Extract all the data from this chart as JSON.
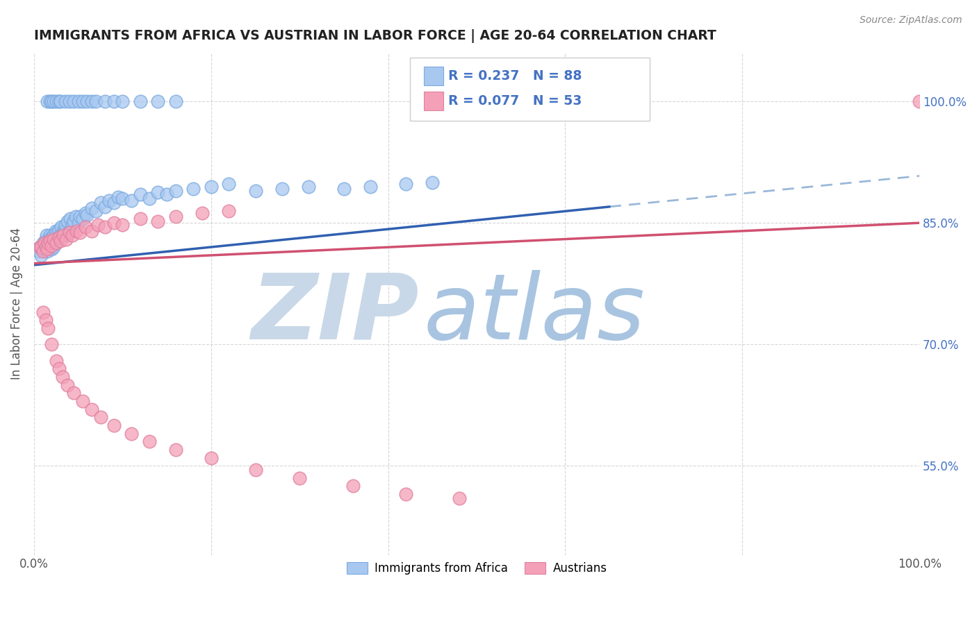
{
  "title": "IMMIGRANTS FROM AFRICA VS AUSTRIAN IN LABOR FORCE | AGE 20-64 CORRELATION CHART",
  "source": "Source: ZipAtlas.com",
  "ylabel": "In Labor Force | Age 20-64",
  "xlim": [
    0.0,
    1.0
  ],
  "ylim": [
    0.44,
    1.06
  ],
  "x_ticks": [
    0.0,
    0.2,
    0.4,
    0.6,
    0.8,
    1.0
  ],
  "x_tick_labels": [
    "0.0%",
    "",
    "",
    "",
    "",
    "100.0%"
  ],
  "y_tick_labels_right": [
    "100.0%",
    "85.0%",
    "70.0%",
    "55.0%"
  ],
  "y_tick_values_right": [
    1.0,
    0.85,
    0.7,
    0.55
  ],
  "legend_label1": "Immigrants from Africa",
  "legend_label2": "Austrians",
  "R1": "0.237",
  "N1": "88",
  "R2": "0.077",
  "N2": "53",
  "color_blue": "#a8c8f0",
  "color_pink": "#f4a0b8",
  "color_blue_text": "#4472c4",
  "color_line_blue": "#3060b0",
  "color_line_pink": "#d05070",
  "color_line_dash": "#9ab8d8",
  "background_color": "#ffffff",
  "blue_scatter_x": [
    0.005,
    0.007,
    0.008,
    0.01,
    0.011,
    0.012,
    0.013,
    0.014,
    0.015,
    0.015,
    0.016,
    0.017,
    0.018,
    0.018,
    0.019,
    0.02,
    0.02,
    0.021,
    0.022,
    0.022,
    0.023,
    0.024,
    0.025,
    0.026,
    0.027,
    0.028,
    0.03,
    0.031,
    0.033,
    0.034,
    0.035,
    0.037,
    0.038,
    0.04,
    0.041,
    0.043,
    0.045,
    0.047,
    0.05,
    0.052,
    0.055,
    0.058,
    0.06,
    0.065,
    0.07,
    0.075,
    0.08,
    0.085,
    0.09,
    0.095,
    0.1,
    0.11,
    0.12,
    0.13,
    0.14,
    0.15,
    0.16,
    0.18,
    0.2,
    0.22,
    0.25,
    0.28,
    0.31,
    0.35,
    0.38,
    0.42,
    0.45,
    0.015,
    0.018,
    0.02,
    0.022,
    0.025,
    0.028,
    0.03,
    0.035,
    0.04,
    0.045,
    0.05,
    0.055,
    0.06,
    0.065,
    0.07,
    0.08,
    0.09,
    0.1,
    0.12,
    0.14,
    0.16
  ],
  "blue_scatter_y": [
    0.815,
    0.82,
    0.81,
    0.825,
    0.818,
    0.822,
    0.83,
    0.835,
    0.815,
    0.828,
    0.822,
    0.83,
    0.82,
    0.835,
    0.825,
    0.818,
    0.832,
    0.828,
    0.835,
    0.82,
    0.83,
    0.84,
    0.825,
    0.838,
    0.832,
    0.842,
    0.835,
    0.845,
    0.84,
    0.838,
    0.848,
    0.835,
    0.852,
    0.84,
    0.855,
    0.848,
    0.852,
    0.858,
    0.85,
    0.858,
    0.855,
    0.862,
    0.86,
    0.868,
    0.865,
    0.875,
    0.87,
    0.878,
    0.875,
    0.882,
    0.88,
    0.878,
    0.885,
    0.88,
    0.888,
    0.885,
    0.89,
    0.892,
    0.895,
    0.898,
    0.89,
    0.892,
    0.895,
    0.892,
    0.895,
    0.898,
    0.9,
    1.0,
    1.0,
    1.0,
    1.0,
    1.0,
    1.0,
    1.0,
    1.0,
    1.0,
    1.0,
    1.0,
    1.0,
    1.0,
    1.0,
    1.0,
    1.0,
    1.0,
    1.0,
    1.0,
    1.0,
    1.0
  ],
  "pink_scatter_x": [
    0.006,
    0.008,
    0.01,
    0.012,
    0.013,
    0.015,
    0.016,
    0.018,
    0.02,
    0.022,
    0.025,
    0.028,
    0.03,
    0.033,
    0.036,
    0.04,
    0.043,
    0.048,
    0.052,
    0.058,
    0.065,
    0.072,
    0.08,
    0.09,
    0.1,
    0.12,
    0.14,
    0.16,
    0.19,
    0.22,
    0.01,
    0.013,
    0.016,
    0.02,
    0.025,
    0.028,
    0.032,
    0.038,
    0.045,
    0.055,
    0.065,
    0.075,
    0.09,
    0.11,
    0.13,
    0.16,
    0.2,
    0.25,
    0.3,
    0.36,
    0.42,
    0.48,
    1.0
  ],
  "pink_scatter_y": [
    0.82,
    0.82,
    0.815,
    0.825,
    0.82,
    0.818,
    0.825,
    0.828,
    0.822,
    0.83,
    0.825,
    0.832,
    0.828,
    0.835,
    0.83,
    0.838,
    0.835,
    0.84,
    0.838,
    0.845,
    0.84,
    0.848,
    0.845,
    0.85,
    0.848,
    0.855,
    0.852,
    0.858,
    0.862,
    0.865,
    0.74,
    0.73,
    0.72,
    0.7,
    0.68,
    0.67,
    0.66,
    0.65,
    0.64,
    0.63,
    0.62,
    0.61,
    0.6,
    0.59,
    0.58,
    0.57,
    0.56,
    0.545,
    0.535,
    0.525,
    0.515,
    0.51,
    1.0
  ],
  "blue_line_x0": 0.0,
  "blue_line_x1": 0.65,
  "blue_line_y0": 0.798,
  "blue_line_y1": 0.87,
  "dash_line_x0": 0.65,
  "dash_line_x1": 1.0,
  "dash_line_y0": 0.87,
  "dash_line_y1": 0.908,
  "pink_line_x0": 0.0,
  "pink_line_x1": 1.0,
  "pink_line_y0": 0.8,
  "pink_line_y1": 0.85
}
